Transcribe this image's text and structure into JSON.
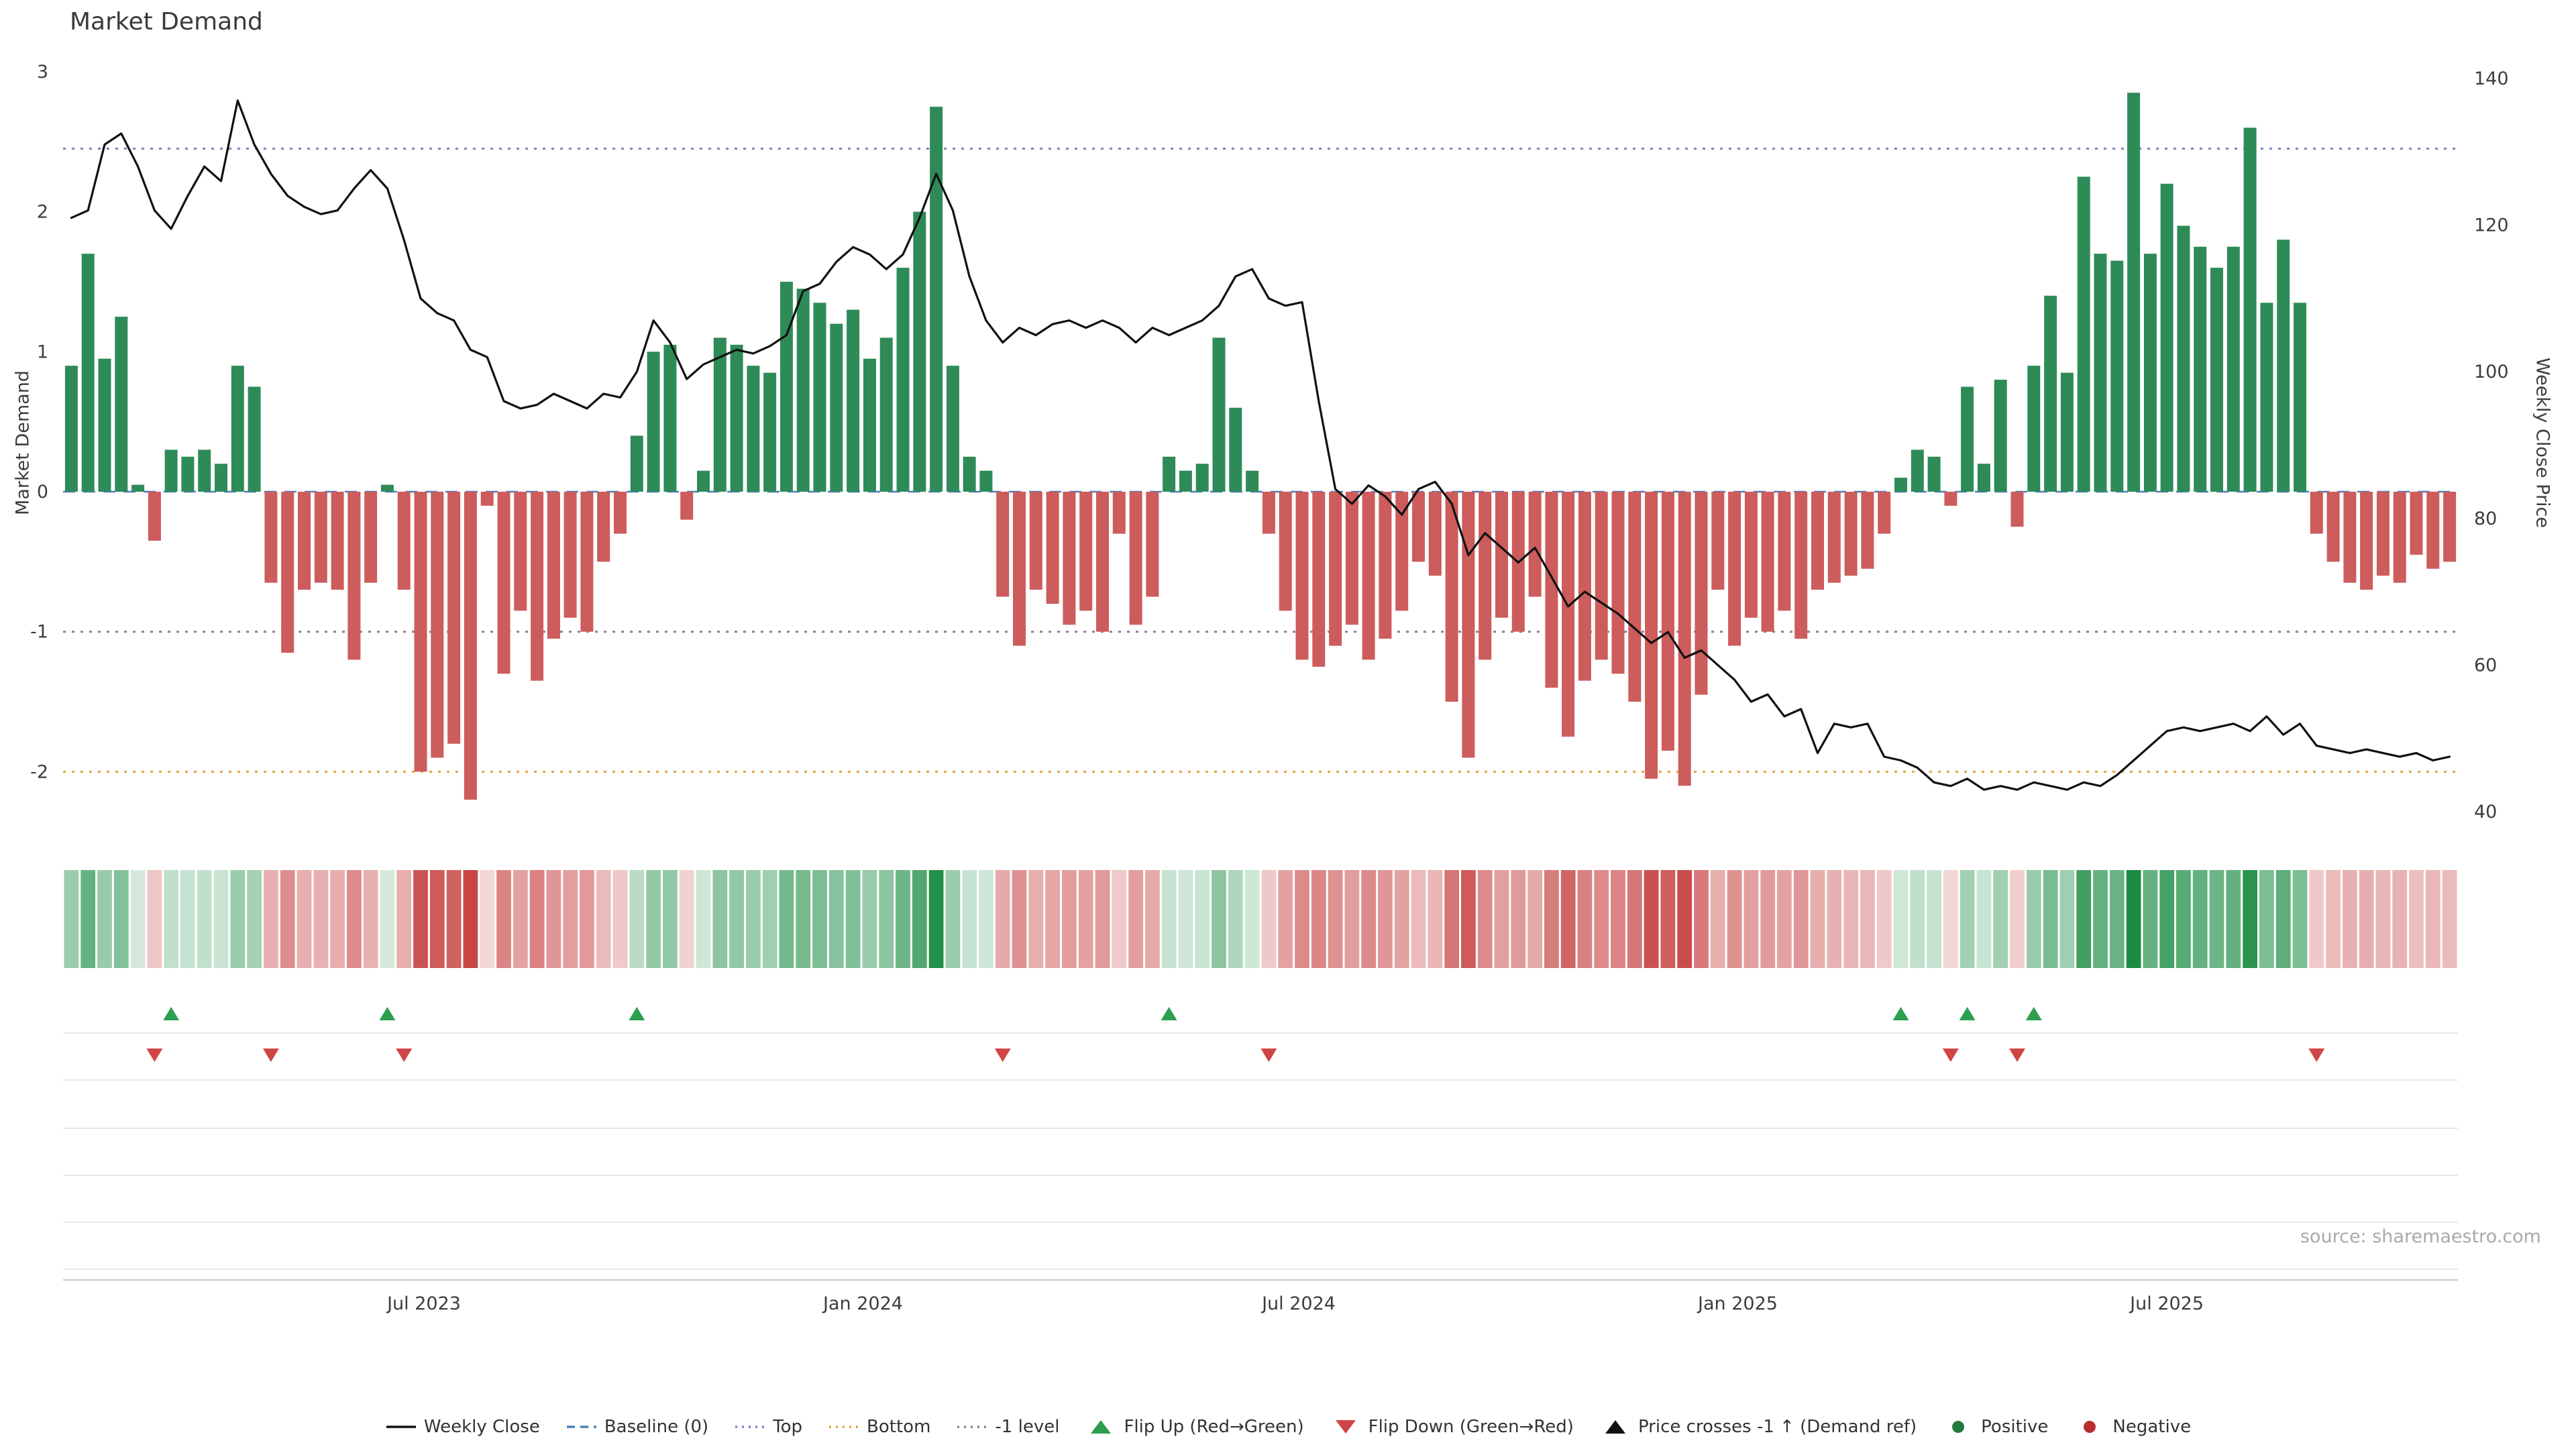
{
  "title": "Market Demand",
  "source": "source: sharemaestro.com",
  "axes": {
    "left_label": "Market Demand",
    "right_label": "Weekly Close Price",
    "left_ticks": [
      3,
      2,
      1,
      0,
      -1,
      -2
    ],
    "right_ticks": [
      140,
      120,
      100,
      80,
      60,
      40
    ],
    "x_ticks": [
      {
        "label": "Jul 2023",
        "week": 21.2
      },
      {
        "label": "Jan 2024",
        "week": 47.6
      },
      {
        "label": "Jul 2024",
        "week": 73.8
      },
      {
        "label": "Jan 2025",
        "week": 100.2
      },
      {
        "label": "Jul 2025",
        "week": 126.0
      }
    ]
  },
  "colors": {
    "positive_bar": "#2e8b57",
    "negative_bar": "#cd5c5c",
    "price_line": "#111111",
    "baseline": "#4a7ebb",
    "top_line": "#7b7fc7",
    "bottom_line": "#e6a23c",
    "minus_one_line": "#8a7d99",
    "flip_up": "#2e9e50",
    "flip_down": "#d04545",
    "panel_grid": "#e7e7e7",
    "axis_line": "#c8c8c8",
    "axis_text": "#3d3d3d",
    "heat_positive_rgb": "26,140,66",
    "heat_negative_rgb": "200,70,70"
  },
  "chart_data": {
    "type": "bar+line",
    "title": "Market Demand",
    "x_unit": "week",
    "n_weeks": 144,
    "left_axis": {
      "label": "Market Demand",
      "range": [
        -2.4,
        3
      ]
    },
    "right_axis": {
      "label": "Weekly Close Price",
      "range": [
        40,
        140
      ]
    },
    "reference_lines": {
      "baseline": 0,
      "top": 2.45,
      "minus_one": -1.0,
      "bottom": -2.0
    },
    "series": [
      {
        "name": "Market Demand",
        "type": "bar",
        "axis": "left",
        "values": [
          0.9,
          1.7,
          0.95,
          1.25,
          0.05,
          -0.35,
          0.3,
          0.25,
          0.3,
          0.2,
          0.9,
          0.75,
          -0.65,
          -1.15,
          -0.7,
          -0.65,
          -0.7,
          -1.2,
          -0.65,
          0.05,
          -0.7,
          -2.0,
          -1.9,
          -1.8,
          -2.2,
          -0.1,
          -1.3,
          -0.85,
          -1.35,
          -1.05,
          -0.9,
          -1.0,
          -0.5,
          -0.3,
          0.4,
          1.0,
          1.05,
          -0.2,
          0.15,
          1.1,
          1.05,
          0.9,
          0.85,
          1.5,
          1.45,
          1.35,
          1.2,
          1.3,
          0.95,
          1.1,
          1.6,
          2.0,
          2.75,
          0.9,
          0.25,
          0.15,
          -0.75,
          -1.1,
          -0.7,
          -0.8,
          -0.95,
          -0.85,
          -1.0,
          -0.3,
          -0.95,
          -0.75,
          0.25,
          0.15,
          0.2,
          1.1,
          0.6,
          0.15,
          -0.3,
          -0.85,
          -1.2,
          -1.25,
          -1.1,
          -0.95,
          -1.2,
          -1.05,
          -0.85,
          -0.5,
          -0.6,
          -1.5,
          -1.9,
          -1.2,
          -0.9,
          -1.0,
          -0.75,
          -1.4,
          -1.75,
          -1.35,
          -1.2,
          -1.3,
          -1.5,
          -2.05,
          -1.85,
          -2.1,
          -1.45,
          -0.7,
          -1.1,
          -0.9,
          -1.0,
          -0.85,
          -1.05,
          -0.7,
          -0.65,
          -0.6,
          -0.55,
          -0.3,
          0.1,
          0.3,
          0.25,
          -0.1,
          0.75,
          0.2,
          0.8,
          -0.25,
          0.9,
          1.4,
          0.85,
          2.25,
          1.7,
          1.65,
          2.85,
          1.7,
          2.2,
          1.9,
          1.75,
          1.6,
          1.75,
          2.6,
          1.35,
          1.8,
          1.35,
          -0.3,
          -0.5,
          -0.65,
          -0.7,
          -0.6,
          -0.65,
          -0.45,
          -0.55,
          -0.5
        ]
      },
      {
        "name": "Weekly Close",
        "type": "line",
        "axis": "right",
        "values": [
          121,
          122,
          131,
          132.5,
          128,
          122,
          119.5,
          124,
          128,
          126,
          137,
          131,
          127,
          124,
          122.5,
          121.5,
          122,
          125,
          127.5,
          125,
          118,
          110,
          108,
          107,
          103,
          102,
          96,
          95,
          95.5,
          97,
          96,
          95,
          97,
          96.5,
          100,
          107,
          104,
          99,
          101,
          102,
          103,
          102.5,
          103.5,
          105,
          111,
          112,
          115,
          117,
          116,
          114,
          116,
          121,
          127,
          122,
          113,
          107,
          104,
          106,
          105,
          106.5,
          107,
          106,
          107,
          106,
          104,
          106,
          105,
          106,
          107,
          109,
          113,
          114,
          110,
          109,
          109.5,
          96,
          84,
          82,
          84.5,
          83,
          80.5,
          84,
          85,
          82,
          75,
          78,
          76,
          74,
          76,
          72,
          68,
          70,
          68.5,
          67,
          65,
          63,
          64.5,
          61,
          62,
          60,
          58,
          55,
          56,
          53,
          54,
          48,
          52,
          51.5,
          52,
          47.5,
          47,
          46,
          44,
          43.5,
          44.5,
          43,
          43.5,
          43,
          44,
          43.5,
          43,
          44,
          43.5,
          45,
          47,
          49,
          51,
          51.5,
          51,
          51.5,
          52,
          51,
          53,
          50.5,
          52,
          49,
          48.5,
          48,
          48.5,
          48,
          47.5,
          48,
          47,
          47.5
        ]
      }
    ],
    "heatmap": {
      "description": "weekly demand sign/intensity strip, green=positive red=negative, derived from Market Demand values"
    },
    "markers": {
      "flip_up_weeks": [
        6,
        19,
        34,
        66,
        110,
        114,
        118
      ],
      "flip_down_weeks": [
        5,
        12,
        20,
        56,
        72,
        113,
        117,
        135
      ],
      "price_cross_minus1_weeks": []
    },
    "legend_position": "bottom-center",
    "grid": "marker panel horizontal guides only"
  },
  "legend": [
    {
      "label": "Weekly Close",
      "swatch": "line",
      "color": "#111111"
    },
    {
      "label": "Baseline (0)",
      "swatch": "dashed",
      "color": "#4a7ebb"
    },
    {
      "label": "Top",
      "swatch": "dotted",
      "color": "#7b7fc7"
    },
    {
      "label": "Bottom",
      "swatch": "dotted",
      "color": "#e6a23c"
    },
    {
      "label": "-1 level",
      "swatch": "dotted",
      "color": "#8a7d99"
    },
    {
      "label": "Flip Up (Red→Green)",
      "swatch": "triangle-up",
      "color": "#2e9e50"
    },
    {
      "label": "Flip Down (Green→Red)",
      "swatch": "triangle-down",
      "color": "#d04545"
    },
    {
      "label": "Price crosses -1 ↑ (Demand ref)",
      "swatch": "triangle-up",
      "color": "#111111"
    },
    {
      "label": "Positive",
      "swatch": "dot",
      "color": "#217a3c"
    },
    {
      "label": "Negative",
      "swatch": "dot",
      "color": "#b82e2e"
    }
  ]
}
